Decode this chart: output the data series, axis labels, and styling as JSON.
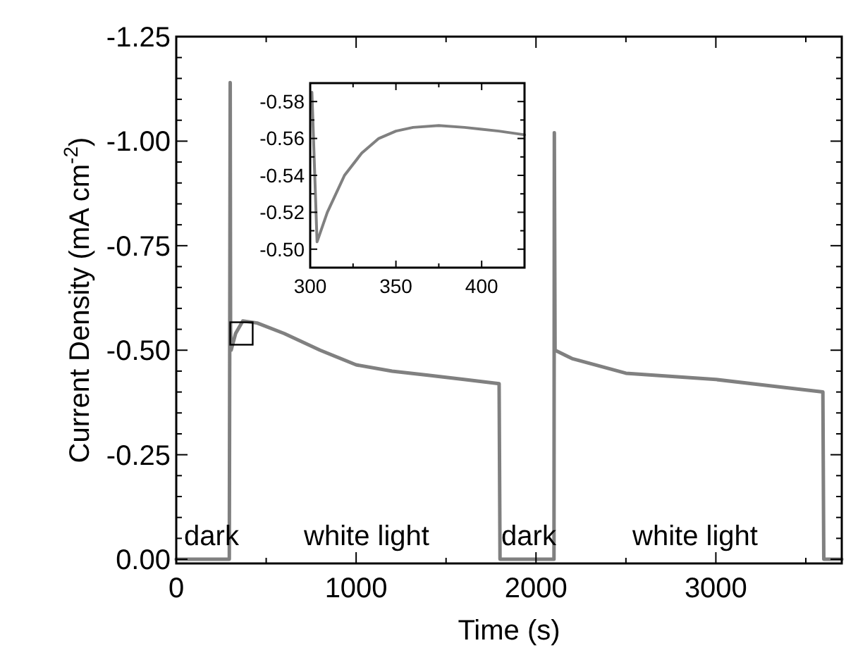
{
  "chart_data": [
    {
      "type": "line",
      "xlabel": "Time (s)",
      "ylabel": "Current Density (mA cm$^{-2}$)",
      "x": [
        0,
        295,
        300,
        302,
        305,
        330,
        370,
        450,
        600,
        800,
        1000,
        1200,
        1400,
        1600,
        1795,
        1800,
        2100,
        2102,
        2106,
        2200,
        2500,
        3000,
        3300,
        3595,
        3600,
        3700
      ],
      "series": [
        {
          "color": "#808080",
          "values": [
            0,
            0,
            -1.14,
            -0.55,
            -0.5,
            -0.54,
            -0.57,
            -0.565,
            -0.54,
            -0.5,
            -0.465,
            -0.45,
            -0.44,
            -0.43,
            -0.42,
            0,
            0,
            -1.02,
            -0.5,
            -0.48,
            -0.445,
            -0.43,
            -0.415,
            -0.4,
            0,
            0
          ]
        }
      ],
      "xlim": [
        0,
        3700
      ],
      "ylim": [
        0.01,
        -1.25
      ],
      "xticks": [
        0,
        {
          "value": 500,
          "label": null
        },
        1000,
        {
          "value": 1500,
          "label": null
        },
        2000,
        {
          "value": 2500,
          "label": null
        },
        3000,
        {
          "value": 3500,
          "label": null
        }
      ],
      "yticks": [
        {
          "value": -1.25,
          "label": "-1.25"
        },
        {
          "value": -1.2,
          "label": null
        },
        {
          "value": -1.15,
          "label": null
        },
        {
          "value": -1.1,
          "label": null
        },
        {
          "value": -1.05,
          "label": null
        },
        {
          "value": -1.0,
          "label": "-1.00"
        },
        {
          "value": -0.95,
          "label": null
        },
        {
          "value": -0.9,
          "label": null
        },
        {
          "value": -0.85,
          "label": null
        },
        {
          "value": -0.8,
          "label": null
        },
        {
          "value": -0.75,
          "label": "-0.75"
        },
        {
          "value": -0.7,
          "label": null
        },
        {
          "value": -0.65,
          "label": null
        },
        {
          "value": -0.6,
          "label": null
        },
        {
          "value": -0.55,
          "label": null
        },
        {
          "value": -0.5,
          "label": "-0.50"
        },
        {
          "value": -0.45,
          "label": null
        },
        {
          "value": -0.4,
          "label": null
        },
        {
          "value": -0.35,
          "label": null
        },
        {
          "value": -0.3,
          "label": null
        },
        {
          "value": -0.25,
          "label": "-0.25"
        },
        {
          "value": -0.2,
          "label": null
        },
        {
          "value": -0.15,
          "label": null
        },
        {
          "value": -0.1,
          "label": null
        },
        {
          "value": -0.05,
          "label": null
        },
        {
          "value": 0,
          "label": "0.00"
        }
      ],
      "annotations": [
        "dark",
        "white light",
        "dark",
        "white light"
      ],
      "grid": false,
      "marker": "none",
      "line_style": "solid"
    },
    {
      "type": "line",
      "x": [
        301,
        304,
        310,
        320,
        330,
        340,
        350,
        360,
        375,
        390,
        400,
        410,
        425
      ],
      "series": [
        {
          "color": "#808080",
          "values": [
            -0.585,
            -0.504,
            -0.52,
            -0.54,
            -0.552,
            -0.56,
            -0.564,
            -0.566,
            -0.567,
            -0.566,
            -0.565,
            -0.564,
            -0.562
          ]
        }
      ],
      "xlim": [
        300,
        425
      ],
      "ylim": [
        -0.49,
        -0.59
      ],
      "xticks": [
        300,
        {
          "value": 325,
          "label": null
        },
        350,
        {
          "value": 375,
          "label": null
        },
        400
      ],
      "yticks": [
        {
          "value": -0.58,
          "label": "-0.58"
        },
        {
          "value": -0.57,
          "label": null
        },
        {
          "value": -0.56,
          "label": "-0.56"
        },
        {
          "value": -0.55,
          "label": null
        },
        {
          "value": -0.54,
          "label": "-0.54"
        },
        {
          "value": -0.53,
          "label": null
        },
        {
          "value": -0.52,
          "label": "-0.52"
        },
        {
          "value": -0.51,
          "label": null
        },
        {
          "value": -0.5,
          "label": "-0.50"
        }
      ],
      "grid": false,
      "marker": "none",
      "line_style": "solid"
    }
  ]
}
